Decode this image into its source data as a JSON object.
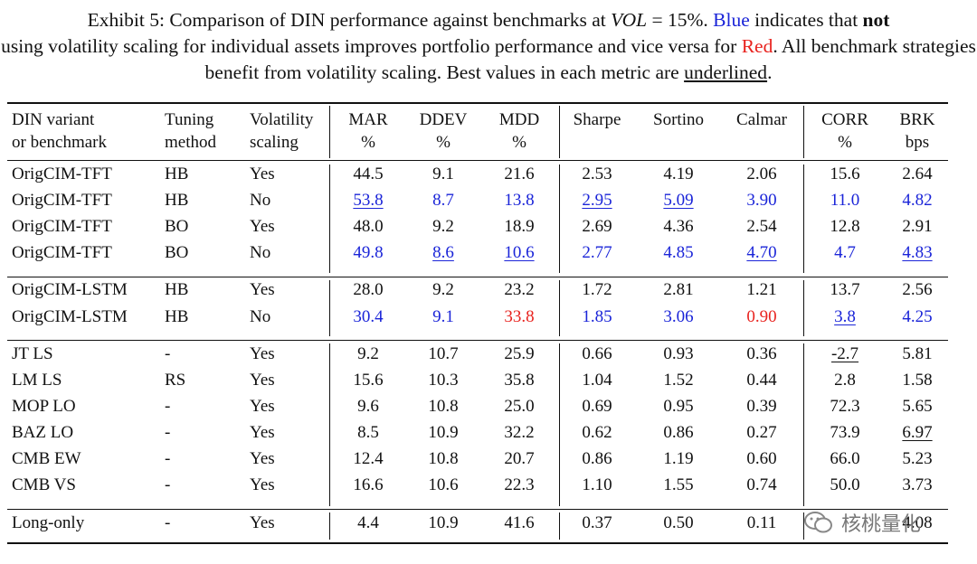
{
  "caption": {
    "p1": "Exhibit 5:  Comparison of DIN performance against benchmarks at ",
    "math_var": "VOL",
    "math_eq": " = 15%. ",
    "blue_word": "Blue",
    "p2": " indicates that ",
    "not_word": "not",
    "p3": " using volatility scaling for individual assets improves portfolio performance and vice versa for ",
    "red_word": "Red",
    "p4": ". All benchmark strategies benefit from volatility scaling. Best values in each metric are ",
    "ul_word": "underlined",
    "p5": "."
  },
  "headers": {
    "variant": [
      "DIN variant",
      "or benchmark"
    ],
    "tuning": [
      "Tuning",
      "method"
    ],
    "vol": [
      "Volatility",
      "scaling"
    ],
    "mar": [
      "MAR",
      "%"
    ],
    "ddev": [
      "DDEV",
      "%"
    ],
    "mdd": [
      "MDD",
      "%"
    ],
    "sharpe": [
      "Sharpe"
    ],
    "sortino": [
      "Sortino"
    ],
    "calmar": [
      "Calmar"
    ],
    "corr": [
      "CORR",
      "%"
    ],
    "brk": [
      "BRK",
      "bps"
    ]
  },
  "rows": [
    {
      "variant": "OrigCIM-TFT",
      "tuning": "HB",
      "vol": "Yes",
      "mar": "44.5",
      "ddev": "9.1",
      "mdd": "21.6",
      "sharpe": "2.53",
      "sortino": "4.19",
      "calmar": "2.06",
      "corr": "15.6",
      "brk": "2.64"
    },
    {
      "variant": "OrigCIM-TFT",
      "tuning": "HB",
      "vol": "No",
      "mar": "53.8",
      "ddev": "8.7",
      "mdd": "13.8",
      "sharpe": "2.95",
      "sortino": "5.09",
      "calmar": "3.90",
      "corr": "11.0",
      "brk": "4.82"
    },
    {
      "variant": "OrigCIM-TFT",
      "tuning": "BO",
      "vol": "Yes",
      "mar": "48.0",
      "ddev": "9.2",
      "mdd": "18.9",
      "sharpe": "2.69",
      "sortino": "4.36",
      "calmar": "2.54",
      "corr": "12.8",
      "brk": "2.91"
    },
    {
      "variant": "OrigCIM-TFT",
      "tuning": "BO",
      "vol": "No",
      "mar": "49.8",
      "ddev": "8.6",
      "mdd": "10.6",
      "sharpe": "2.77",
      "sortino": "4.85",
      "calmar": "4.70",
      "corr": "4.7",
      "brk": "4.83"
    },
    {
      "variant": "OrigCIM-LSTM",
      "tuning": "HB",
      "vol": "Yes",
      "mar": "28.0",
      "ddev": "9.2",
      "mdd": "23.2",
      "sharpe": "1.72",
      "sortino": "2.81",
      "calmar": "1.21",
      "corr": "13.7",
      "brk": "2.56"
    },
    {
      "variant": "OrigCIM-LSTM",
      "tuning": "HB",
      "vol": "No",
      "mar": "30.4",
      "ddev": "9.1",
      "mdd": "33.8",
      "sharpe": "1.85",
      "sortino": "3.06",
      "calmar": "0.90",
      "corr": "3.8",
      "brk": "4.25"
    },
    {
      "variant": "JT LS",
      "tuning": "-",
      "vol": "Yes",
      "mar": "9.2",
      "ddev": "10.7",
      "mdd": "25.9",
      "sharpe": "0.66",
      "sortino": "0.93",
      "calmar": "0.36",
      "corr": "-2.7",
      "brk": "5.81"
    },
    {
      "variant": "LM LS",
      "tuning": "RS",
      "vol": "Yes",
      "mar": "15.6",
      "ddev": "10.3",
      "mdd": "35.8",
      "sharpe": "1.04",
      "sortino": "1.52",
      "calmar": "0.44",
      "corr": "2.8",
      "brk": "1.58"
    },
    {
      "variant": "MOP LO",
      "tuning": "-",
      "vol": "Yes",
      "mar": "9.6",
      "ddev": "10.8",
      "mdd": "25.0",
      "sharpe": "0.69",
      "sortino": "0.95",
      "calmar": "0.39",
      "corr": "72.3",
      "brk": "5.65"
    },
    {
      "variant": "BAZ LO",
      "tuning": "-",
      "vol": "Yes",
      "mar": "8.5",
      "ddev": "10.9",
      "mdd": "32.2",
      "sharpe": "0.62",
      "sortino": "0.86",
      "calmar": "0.27",
      "corr": "73.9",
      "brk": "6.97"
    },
    {
      "variant": "CMB EW",
      "tuning": "-",
      "vol": "Yes",
      "mar": "12.4",
      "ddev": "10.8",
      "mdd": "20.7",
      "sharpe": "0.86",
      "sortino": "1.19",
      "calmar": "0.60",
      "corr": "66.0",
      "brk": "5.23"
    },
    {
      "variant": "CMB VS",
      "tuning": "-",
      "vol": "Yes",
      "mar": "16.6",
      "ddev": "10.6",
      "mdd": "22.3",
      "sharpe": "1.10",
      "sortino": "1.55",
      "calmar": "0.74",
      "corr": "50.0",
      "brk": "3.73"
    },
    {
      "variant": "Long-only",
      "tuning": "-",
      "vol": "Yes",
      "mar": "4.4",
      "ddev": "10.9",
      "mdd": "41.6",
      "sharpe": "0.37",
      "sortino": "0.50",
      "calmar": "0.11",
      "corr": "",
      "brk": "4.08"
    }
  ],
  "styles": {
    "1": {
      "mar": "blue u",
      "ddev": "blue",
      "mdd": "blue",
      "sharpe": "blue u",
      "sortino": "blue u",
      "calmar": "blue",
      "corr": "blue",
      "brk": "blue"
    },
    "3": {
      "mar": "blue",
      "ddev": "blue u",
      "mdd": "blue u",
      "sharpe": "blue",
      "sortino": "blue",
      "calmar": "blue u",
      "corr": "blue",
      "brk": "blue u"
    },
    "5": {
      "mar": "blue",
      "ddev": "blue",
      "mdd": "red",
      "sharpe": "blue",
      "sortino": "blue",
      "calmar": "red",
      "corr": "blue u",
      "brk": "blue"
    },
    "6": {
      "corr": "u"
    },
    "9": {
      "brk": "u"
    }
  },
  "colors": {
    "blue": "#1a24d8",
    "red": "#e8231f",
    "rule": "#111111"
  },
  "watermark": {
    "text": "核桃量化",
    "icon": "wechat-icon"
  }
}
